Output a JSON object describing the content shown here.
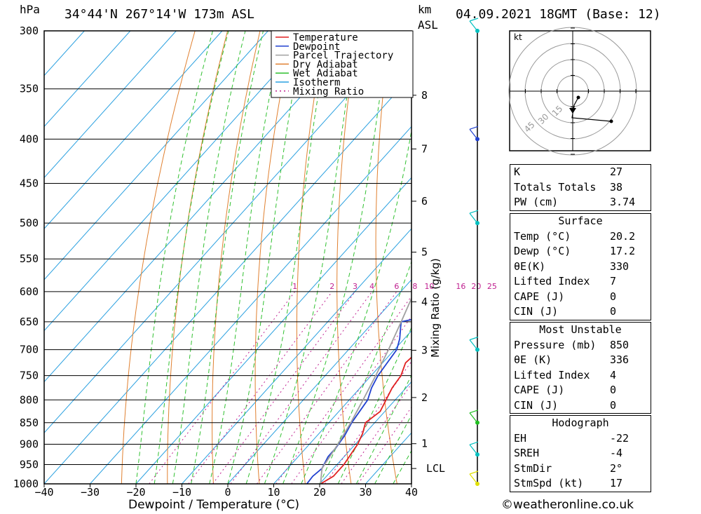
{
  "header": {
    "location": "34°44'N  267°14'W  173m  ASL",
    "hpa_unit": "hPa",
    "km_unit": "km",
    "asl_unit": "ASL",
    "date": "04.09.2021  18GMT  (Base: 12)"
  },
  "chart_data": {
    "type": "line",
    "xlabel": "Dewpoint / Temperature (°C)",
    "y2label": "Mixing Ratio (g/kg)",
    "xlim": [
      -40,
      40
    ],
    "x_ticks": [
      -40,
      -30,
      -20,
      -10,
      0,
      10,
      20,
      30,
      40
    ],
    "pressure_levels": [
      300,
      350,
      400,
      450,
      500,
      550,
      600,
      650,
      700,
      750,
      800,
      850,
      900,
      950,
      1000
    ],
    "km_ticks": [
      1,
      2,
      3,
      4,
      5,
      6,
      7,
      8
    ],
    "lcl_label": "LCL",
    "mixing_ratio_labels": [
      "1",
      "2",
      "3",
      "4",
      "6",
      "8",
      "10",
      "16",
      "20",
      "25"
    ],
    "legend": [
      "Temperature",
      "Dewpoint",
      "Parcel Trajectory",
      "Dry Adiabat",
      "Wet Adiabat",
      "Isotherm",
      "Mixing Ratio"
    ],
    "series": [
      {
        "name": "Temperature",
        "color": "#e02020",
        "points": [
          [
            1000,
            20.2
          ],
          [
            980,
            21.5
          ],
          [
            950,
            21.5
          ],
          [
            925,
            21
          ],
          [
            900,
            20.5
          ],
          [
            875,
            19.5
          ],
          [
            850,
            18
          ],
          [
            825,
            19
          ],
          [
            800,
            18
          ],
          [
            775,
            17
          ],
          [
            750,
            16.5
          ],
          [
            725,
            15
          ],
          [
            700,
            15.5
          ],
          [
            680,
            15
          ],
          [
            650,
            12.5
          ],
          [
            620,
            11
          ],
          [
            600,
            10.5
          ],
          [
            575,
            9
          ],
          [
            550,
            7.5
          ],
          [
            525,
            6
          ],
          [
            500,
            6
          ],
          [
            480,
            5
          ],
          [
            460,
            4.5
          ],
          [
            440,
            3
          ],
          [
            420,
            1
          ],
          [
            400,
            -1
          ],
          [
            380,
            -3
          ],
          [
            360,
            -5
          ],
          [
            340,
            -6.5
          ],
          [
            320,
            -8.5
          ],
          [
            300,
            -11
          ]
        ]
      },
      {
        "name": "Dewpoint",
        "color": "#2040d0",
        "points": [
          [
            1000,
            17.2
          ],
          [
            980,
            17
          ],
          [
            960,
            17.5
          ],
          [
            930,
            16.5
          ],
          [
            910,
            16.5
          ],
          [
            880,
            16
          ],
          [
            850,
            15
          ],
          [
            825,
            14.5
          ],
          [
            800,
            14
          ],
          [
            775,
            12.5
          ],
          [
            750,
            11.5
          ],
          [
            725,
            11
          ],
          [
            700,
            10.5
          ],
          [
            680,
            9
          ],
          [
            660,
            7
          ],
          [
            650,
            6
          ],
          [
            640,
            11
          ],
          [
            630,
            7
          ],
          [
            620,
            10
          ],
          [
            600,
            8
          ],
          [
            580,
            6
          ],
          [
            560,
            5
          ],
          [
            540,
            6
          ],
          [
            520,
            5
          ],
          [
            510,
            0
          ],
          [
            500,
            0
          ],
          [
            490,
            1
          ],
          [
            480,
            2
          ],
          [
            470,
            -4
          ],
          [
            455,
            -6
          ],
          [
            440,
            -8
          ],
          [
            420,
            -12
          ],
          [
            400,
            -22
          ],
          [
            380,
            -26
          ],
          [
            350,
            -34
          ],
          [
            320,
            -34
          ],
          [
            300,
            -35
          ]
        ]
      },
      {
        "name": "Parcel Trajectory",
        "color": "#a0a0a0",
        "points": [
          [
            1000,
            20.2
          ],
          [
            960,
            17.5
          ],
          [
            900,
            16.2
          ],
          [
            850,
            14.8
          ],
          [
            800,
            13
          ],
          [
            750,
            11
          ],
          [
            700,
            8.7
          ],
          [
            650,
            6
          ],
          [
            600,
            3
          ],
          [
            550,
            -0.5
          ],
          [
            500,
            -4.5
          ],
          [
            450,
            -9.5
          ],
          [
            400,
            -15.5
          ],
          [
            350,
            -23
          ],
          [
            300,
            -32
          ]
        ]
      }
    ],
    "wind_barbs": [
      {
        "pressure": 300,
        "color": "#00c0c0"
      },
      {
        "pressure": 400,
        "color": "#2040d0"
      },
      {
        "pressure": 500,
        "color": "#00c0c0"
      },
      {
        "pressure": 700,
        "color": "#00c0c0"
      },
      {
        "pressure": 850,
        "color": "#20c020"
      },
      {
        "pressure": 925,
        "color": "#00c0c0"
      },
      {
        "pressure": 1000,
        "color": "#e0e000"
      }
    ]
  },
  "hodograph": {
    "unit": "kt",
    "ring_labels": [
      "15",
      "30",
      "45"
    ]
  },
  "indices": {
    "rows": [
      {
        "label": "K",
        "value": "27"
      },
      {
        "label": "Totals Totals",
        "value": "38"
      },
      {
        "label": "PW (cm)",
        "value": "3.74"
      }
    ]
  },
  "surface": {
    "title": "Surface",
    "rows": [
      {
        "label": "Temp (°C)",
        "value": "20.2"
      },
      {
        "label": "Dewp (°C)",
        "value": "17.2"
      },
      {
        "label": "θE(K)",
        "value": "330"
      },
      {
        "label": "Lifted Index",
        "value": "7"
      },
      {
        "label": "CAPE (J)",
        "value": "0"
      },
      {
        "label": "CIN (J)",
        "value": "0"
      }
    ]
  },
  "most_unstable": {
    "title": "Most Unstable",
    "rows": [
      {
        "label": "Pressure (mb)",
        "value": "850"
      },
      {
        "label": "θE (K)",
        "value": "336"
      },
      {
        "label": "Lifted Index",
        "value": "4"
      },
      {
        "label": "CAPE (J)",
        "value": "0"
      },
      {
        "label": "CIN (J)",
        "value": "0"
      }
    ]
  },
  "hodo_table": {
    "title": "Hodograph",
    "rows": [
      {
        "label": "EH",
        "value": "-22"
      },
      {
        "label": "SREH",
        "value": "-4"
      },
      {
        "label": "StmDir",
        "value": "2°"
      },
      {
        "label": "StmSpd (kt)",
        "value": "17"
      }
    ]
  },
  "credit": "©weatheronline.co.uk"
}
